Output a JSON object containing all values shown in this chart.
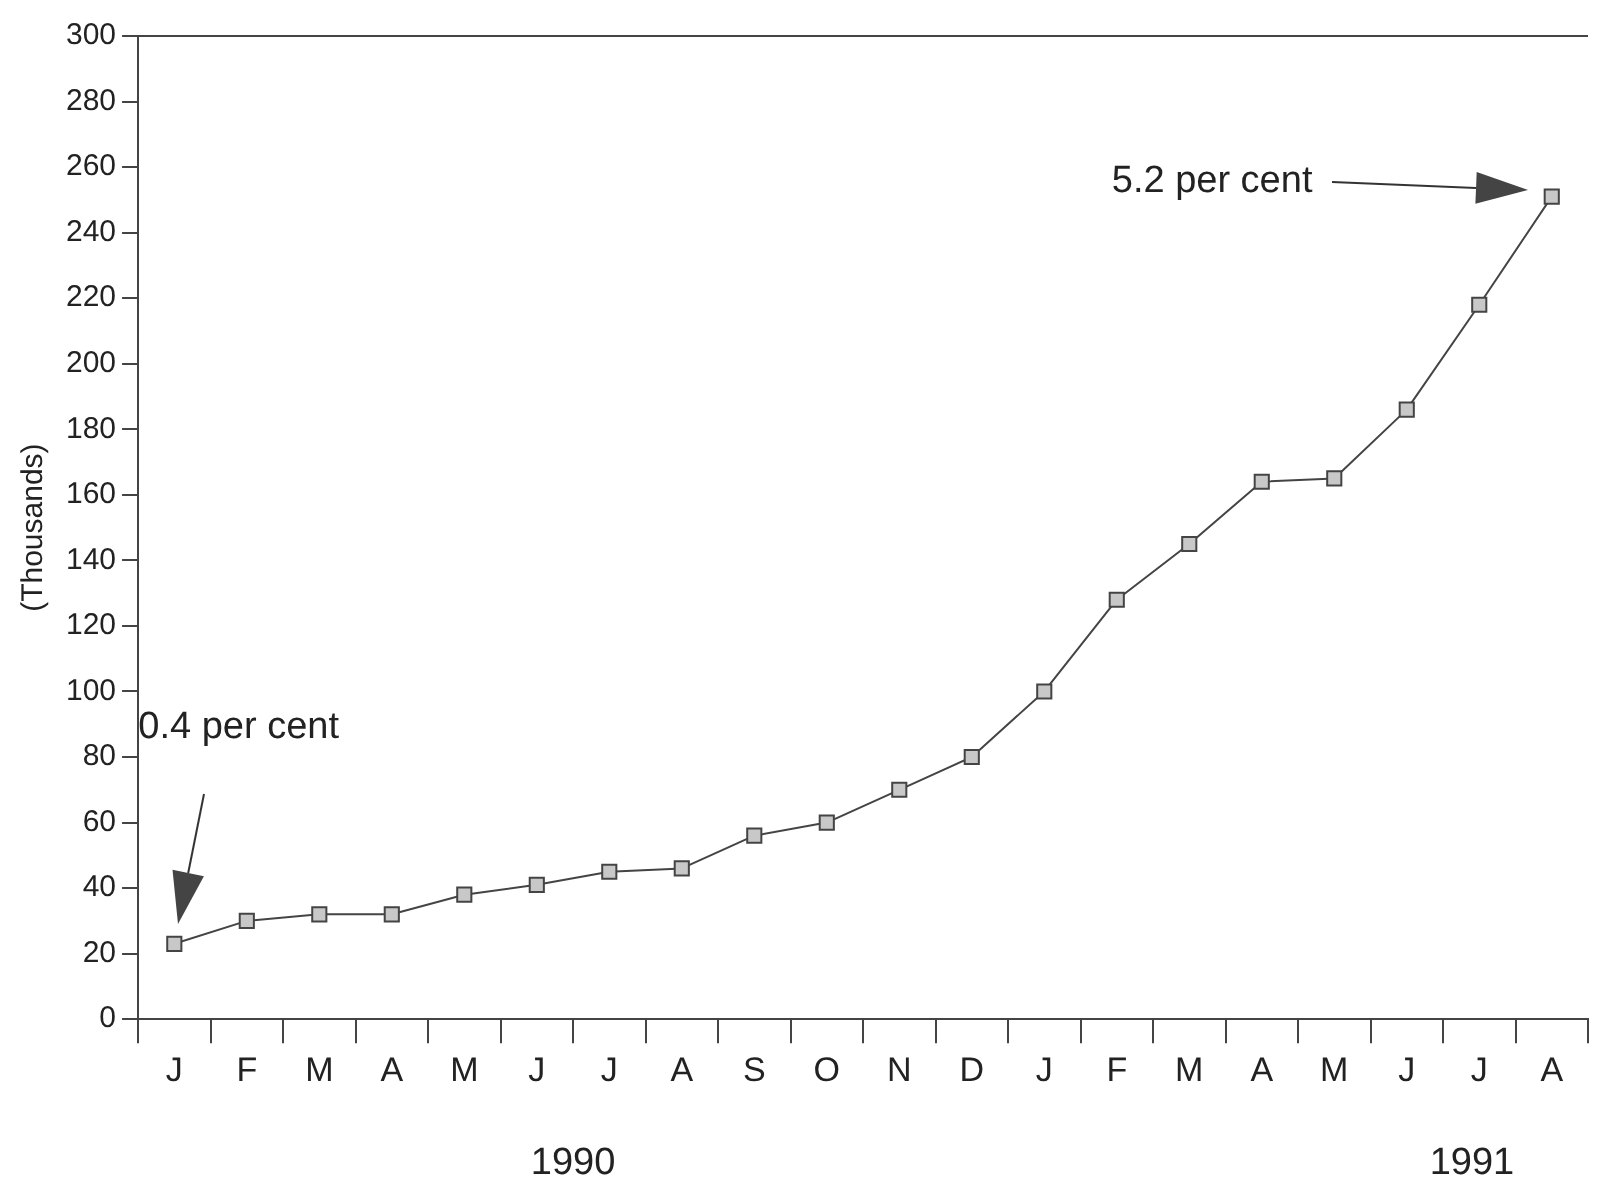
{
  "chart_data": {
    "type": "line",
    "ylabel": "(Thousands)",
    "categories": [
      "J",
      "F",
      "M",
      "A",
      "M",
      "J",
      "J",
      "A",
      "S",
      "O",
      "N",
      "D",
      "J",
      "F",
      "M",
      "A",
      "M",
      "J",
      "J",
      "A"
    ],
    "series": [
      {
        "color": "#444444",
        "values": [
          23,
          30,
          32,
          32,
          38,
          41,
          45,
          46,
          56,
          60,
          70,
          80,
          100,
          128,
          145,
          164,
          165,
          186,
          218,
          251
        ]
      }
    ],
    "ylim": [
      0,
      300
    ],
    "yticks": [
      0,
      20,
      40,
      60,
      80,
      100,
      120,
      140,
      160,
      180,
      200,
      220,
      240,
      260,
      280,
      300
    ],
    "grid": false,
    "legend": false,
    "marker": "square",
    "line_style": "solid",
    "annotations": [
      "0.4 per cent",
      "5.2 per cent",
      "1990",
      "1991"
    ]
  }
}
